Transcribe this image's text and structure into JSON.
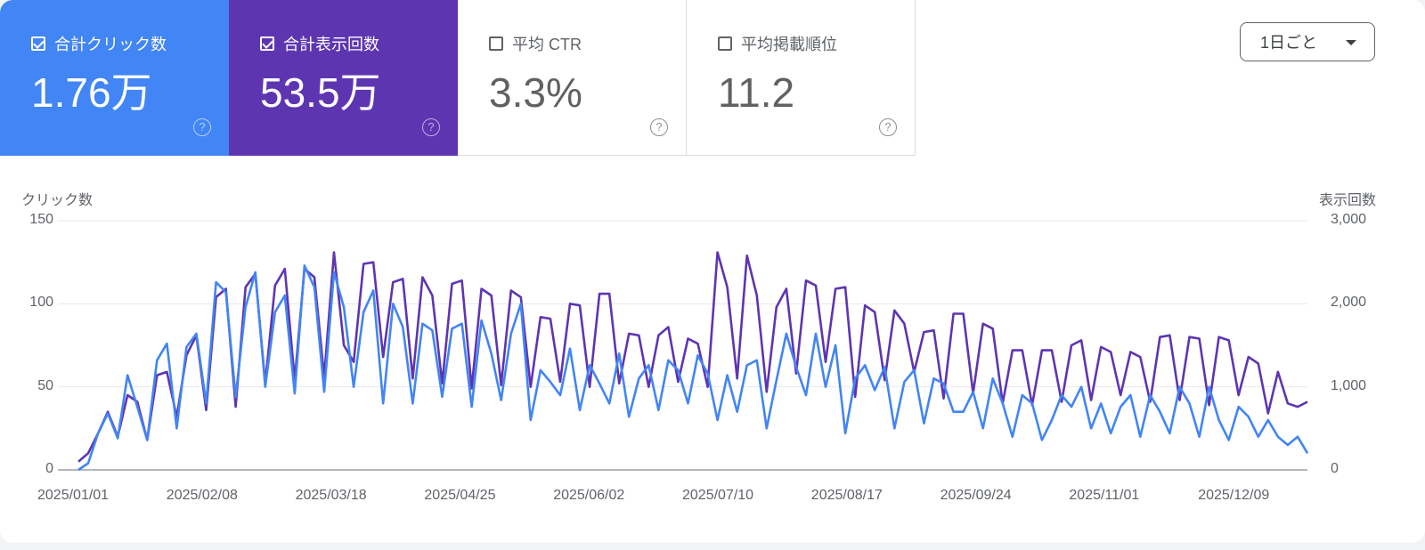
{
  "metrics": [
    {
      "id": "clicks",
      "label": "合計クリック数",
      "value": "1.76万",
      "checked": true,
      "color": "#4285f4"
    },
    {
      "id": "impressions",
      "label": "合計表示回数",
      "value": "53.5万",
      "checked": true,
      "color": "#5e35b1"
    },
    {
      "id": "ctr",
      "label": "平均 CTR",
      "value": "3.3%",
      "checked": false
    },
    {
      "id": "position",
      "label": "平均掲載順位",
      "value": "11.2",
      "checked": false
    }
  ],
  "help_icon": "?",
  "granularity": {
    "selected": "1日ごと",
    "icon": "caret-down-icon"
  },
  "chart_data": {
    "type": "line",
    "title": "",
    "xlabel": "",
    "ylabel_left": "クリック数",
    "ylabel_right": "表示回数",
    "ylim_left": [
      0,
      150
    ],
    "ylim_right": [
      0,
      3000
    ],
    "yticks_left": [
      "0",
      "50",
      "100",
      "150"
    ],
    "yticks_right": [
      "0",
      "1,000",
      "2,000",
      "3,000"
    ],
    "xticks": [
      "2025/01/01",
      "2025/02/08",
      "2025/03/18",
      "2025/04/25",
      "2025/06/02",
      "2025/07/10",
      "2025/08/17",
      "2025/09/24",
      "2025/11/01",
      "2025/12/09"
    ],
    "grid": true,
    "legend": "metric cards above chart",
    "x_start": "2025/01/01",
    "x_end": "2025/12/31",
    "sample_interval_days": 3.5,
    "series": [
      {
        "name": "合計クリック数",
        "axis": "left",
        "color": "#4285f4",
        "values": [
          0,
          4,
          22,
          34,
          19,
          57,
          38,
          18,
          66,
          76,
          25,
          74,
          82,
          40,
          113,
          107,
          44,
          98,
          119,
          50,
          95,
          105,
          46,
          123,
          110,
          47,
          119,
          98,
          50,
          95,
          108,
          40,
          100,
          86,
          40,
          88,
          84,
          44,
          85,
          88,
          38,
          90,
          70,
          42,
          82,
          100,
          30,
          60,
          53,
          45,
          73,
          36,
          63,
          52,
          40,
          70,
          32,
          55,
          63,
          36,
          66,
          60,
          40,
          69,
          58,
          30,
          57,
          35,
          63,
          66,
          25,
          54,
          82,
          62,
          45,
          82,
          50,
          75,
          22,
          55,
          63,
          48,
          62,
          25,
          53,
          60,
          28,
          55,
          52,
          35,
          35,
          47,
          25,
          55,
          40,
          20,
          45,
          40,
          18,
          30,
          45,
          38,
          50,
          25,
          40,
          22,
          38,
          45,
          20,
          45,
          35,
          22,
          50,
          40,
          20,
          50,
          30,
          18,
          38,
          32,
          20,
          30,
          20,
          15,
          20,
          10
        ]
      },
      {
        "name": "合計表示回数",
        "axis": "right",
        "color": "#5e35b1",
        "values": [
          100,
          200,
          440,
          700,
          400,
          900,
          820,
          360,
          1140,
          1180,
          640,
          1380,
          1620,
          720,
          2080,
          2180,
          760,
          2200,
          2360,
          1040,
          2220,
          2420,
          1080,
          2420,
          2320,
          1120,
          2620,
          1500,
          1300,
          2480,
          2500,
          1360,
          2260,
          2300,
          1100,
          2320,
          2100,
          1040,
          2240,
          2280,
          980,
          2180,
          2100,
          1020,
          2160,
          2080,
          1000,
          1840,
          1820,
          1060,
          2000,
          1980,
          1000,
          2120,
          2120,
          1040,
          1640,
          1620,
          1000,
          1620,
          1720,
          1060,
          1580,
          1520,
          1000,
          2620,
          2200,
          1100,
          2580,
          2100,
          940,
          1960,
          2180,
          1160,
          2280,
          2220,
          1300,
          2180,
          2200,
          880,
          1980,
          1900,
          1080,
          1920,
          1760,
          1180,
          1660,
          1680,
          860,
          1880,
          1880,
          920,
          1760,
          1700,
          800,
          1440,
          1440,
          780,
          1440,
          1440,
          820,
          1500,
          1560,
          840,
          1480,
          1420,
          900,
          1420,
          1360,
          820,
          1600,
          1620,
          840,
          1600,
          1580,
          780,
          1600,
          1560,
          900,
          1360,
          1280,
          680,
          1180,
          800,
          760,
          820
        ]
      }
    ]
  }
}
